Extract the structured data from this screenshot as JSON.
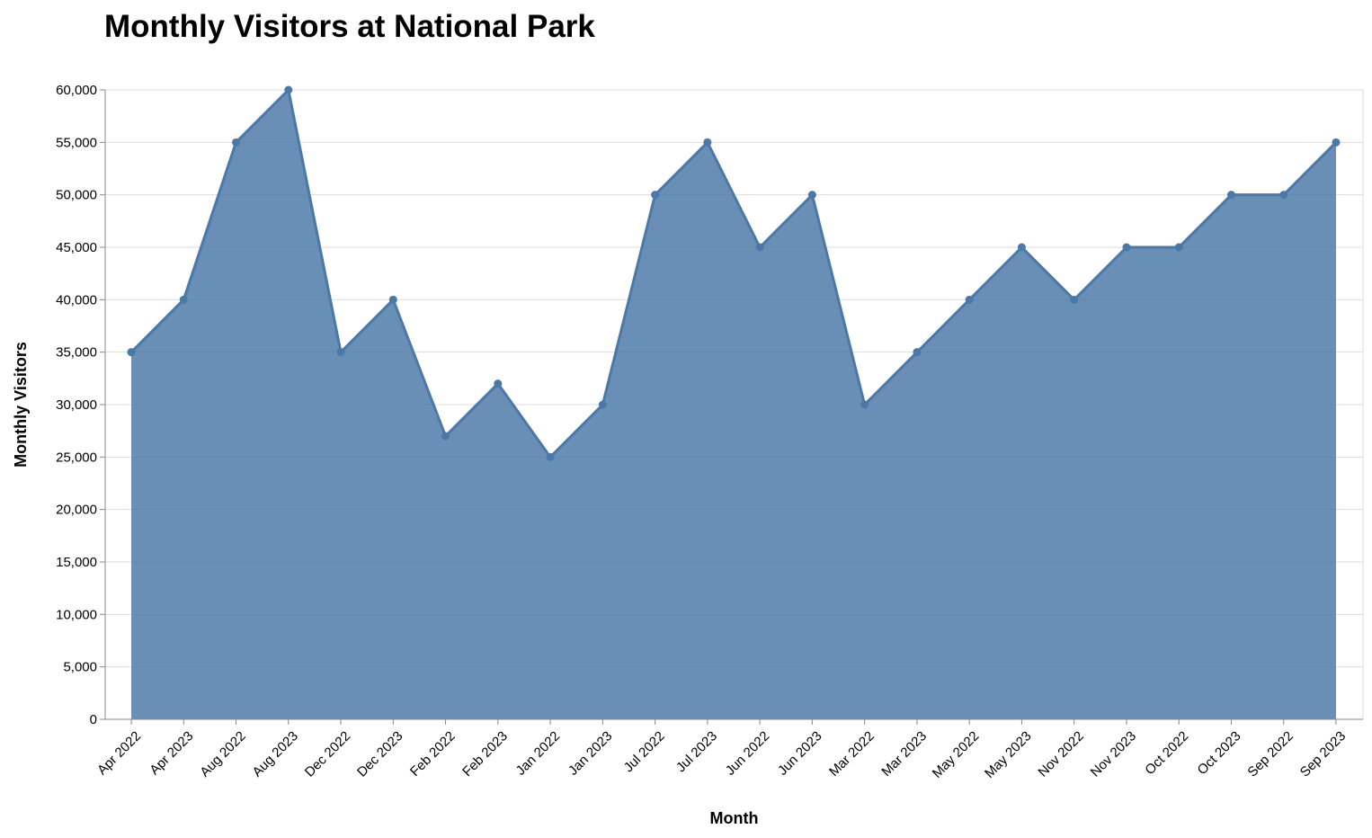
{
  "chart_data": {
    "type": "area",
    "title": "Monthly Visitors at National Park",
    "xlabel": "Month",
    "ylabel": "Monthly Visitors",
    "ylim": [
      0,
      60000
    ],
    "yticks": [
      0,
      5000,
      10000,
      15000,
      20000,
      25000,
      30000,
      35000,
      40000,
      45000,
      50000,
      55000,
      60000
    ],
    "ytick_labels": [
      "0",
      "5,000",
      "10,000",
      "15,000",
      "20,000",
      "25,000",
      "30,000",
      "35,000",
      "40,000",
      "45,000",
      "50,000",
      "55,000",
      "60,000"
    ],
    "grid": true,
    "legend": "none",
    "colors": {
      "fill": "#4c78a8",
      "line": "#4c78a8"
    },
    "categories": [
      "Apr 2022",
      "Apr 2023",
      "Aug 2022",
      "Aug 2023",
      "Dec 2022",
      "Dec 2023",
      "Feb 2022",
      "Feb 2023",
      "Jan 2022",
      "Jan 2023",
      "Jul 2022",
      "Jul 2023",
      "Jun 2022",
      "Jun 2023",
      "Mar 2022",
      "Mar 2023",
      "May 2022",
      "May 2023",
      "Nov 2022",
      "Nov 2023",
      "Oct 2022",
      "Oct 2023",
      "Sep 2022",
      "Sep 2023"
    ],
    "values": [
      35000,
      40000,
      55000,
      60000,
      35000,
      40000,
      27000,
      32000,
      25000,
      30000,
      50000,
      55000,
      45000,
      50000,
      30000,
      35000,
      40000,
      45000,
      40000,
      45000,
      45000,
      50000,
      50000,
      55000
    ]
  }
}
